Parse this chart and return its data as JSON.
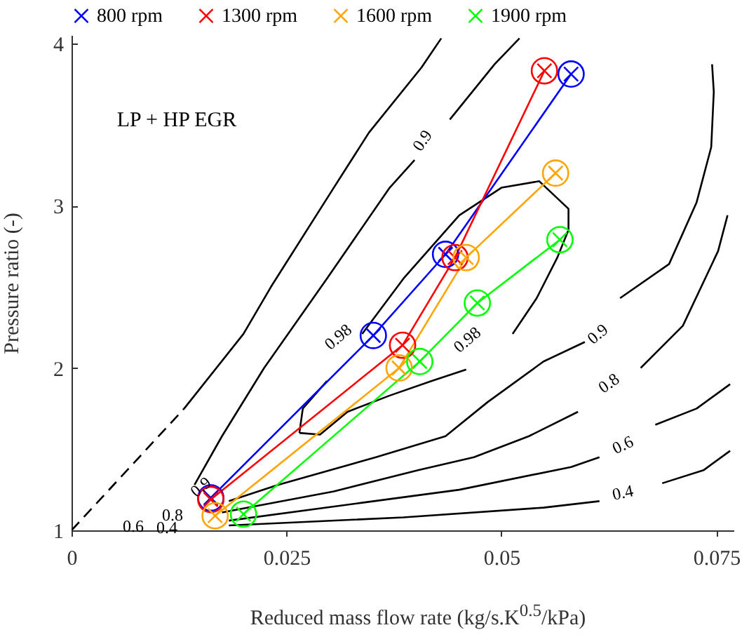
{
  "chart_data": {
    "type": "line",
    "xlabel": "Reduced mass flow rate (kg/s.K$^{0.5}$/kPa)",
    "ylabel": "Pressure ratio (-)",
    "xlim": [
      0,
      0.077
    ],
    "ylim": [
      1,
      4.05
    ],
    "xticks": [
      0,
      {
        "value": 0.025,
        "label": "0.025"
      },
      0.05,
      {
        "value": 0.075,
        "label": "0.075"
      }
    ],
    "yticks": [
      1,
      2,
      3,
      4
    ],
    "legend": "top",
    "marker": "cross",
    "grid": false,
    "annotations": [
      "LP + HP EGR",
      "0.9",
      "0.98",
      "0.98",
      "0.9",
      "0.8",
      "0.6",
      "0.4",
      "0.9",
      "0.8",
      "0.6",
      "0.4"
    ],
    "series": [
      {
        "name": "800 rpm",
        "color": "#0000ff",
        "x": [
          0.0162,
          0.0351,
          0.0435,
          0.0581
        ],
        "values": [
          1.2,
          2.2,
          2.7,
          3.81
        ]
      },
      {
        "name": "1300 rpm",
        "color": "#ff0000",
        "x": [
          0.0162,
          0.0385,
          0.0446,
          0.055
        ],
        "values": [
          1.19,
          2.14,
          2.68,
          3.83
        ]
      },
      {
        "name": "1600 rpm",
        "color": "#ffa500",
        "x": [
          0.0167,
          0.0381,
          0.0459,
          0.0563
        ],
        "values": [
          1.09,
          2.0,
          2.68,
          3.2
        ]
      },
      {
        "name": "1900 rpm",
        "color": "#00ff00",
        "x": [
          0.02,
          0.0405,
          0.0472,
          0.0568
        ],
        "values": [
          1.1,
          2.04,
          2.4,
          2.79
        ]
      },
      {
        "color": "#000000",
        "marker": "none",
        "line_style": "dashed",
        "x": [
          0,
          0.0131
        ],
        "values": [
          1,
          1.75
        ]
      },
      {
        "color": "#000000",
        "marker": "none",
        "x": [
          0.0131,
          0.02,
          0.0232,
          0.0305,
          0.0346,
          0.0407,
          0.043
        ],
        "values": [
          1.75,
          2.21,
          2.5,
          3.11,
          3.45,
          3.85,
          4.03
        ]
      },
      {
        "color": "#000000",
        "marker": "none",
        "x": [
          0.0143,
          0.0175,
          0.0224,
          0.0297,
          0.037,
          0.0399,
          null,
          0.044,
          0.0492,
          0.0521
        ],
        "values": [
          1.28,
          1.58,
          2.0,
          2.55,
          3.11,
          3.28,
          null,
          3.53,
          3.87,
          4.03
        ]
      },
      {
        "color": "#000000",
        "marker": "none",
        "x": [
          0.0265,
          0.0269,
          0.0297,
          null,
          0.0338,
          0.0386,
          0.0451,
          0.05,
          0.0544,
          0.0578,
          0.0578,
          0.0565,
          0.0541,
          0.0513,
          null,
          0.0459,
          0.0419,
          0.037,
          0.0321,
          0.0289,
          0.0265
        ],
        "values": [
          1.6,
          1.75,
          1.92,
          null,
          2.21,
          2.55,
          2.94,
          3.11,
          3.15,
          2.98,
          2.85,
          2.68,
          2.43,
          2.21,
          null,
          1.99,
          1.92,
          1.83,
          1.73,
          1.59,
          1.6
        ]
      },
      {
        "color": "#000000",
        "marker": "none",
        "x": [
          0.0183,
          0.024,
          0.0354,
          0.0435,
          0.0484,
          0.0549,
          0.0597,
          null,
          0.0638,
          0.0695,
          0.0727,
          0.0744,
          0.0747,
          0.0745
        ],
        "values": [
          1.18,
          1.28,
          1.45,
          1.58,
          1.79,
          2.04,
          2.16,
          null,
          2.43,
          2.64,
          3.02,
          3.36,
          3.7,
          3.87
        ]
      },
      {
        "color": "#000000",
        "marker": "none",
        "x": [
          0.0175,
          0.0305,
          0.0403,
          0.0468,
          0.0532,
          0.0589,
          null,
          0.0662,
          0.0711,
          0.0752,
          0.0763
        ],
        "values": [
          1.11,
          1.24,
          1.37,
          1.45,
          1.58,
          1.73,
          null,
          2.0,
          2.26,
          2.72,
          2.94
        ]
      },
      {
        "color": "#000000",
        "marker": "none",
        "x": [
          0.0183,
          0.0338,
          0.0451,
          0.0581,
          0.0614,
          null,
          0.0679,
          0.0727,
          0.0766
        ],
        "values": [
          1.06,
          1.17,
          1.25,
          1.39,
          1.45,
          null,
          1.65,
          1.75,
          1.9
        ]
      },
      {
        "color": "#000000",
        "marker": "none",
        "x": [
          0.0183,
          0.0386,
          0.0549,
          0.0614,
          null,
          0.0687,
          0.0735,
          0.0766
        ],
        "values": [
          1.03,
          1.08,
          1.14,
          1.18,
          null,
          1.29,
          1.37,
          1.49
        ]
      }
    ]
  }
}
